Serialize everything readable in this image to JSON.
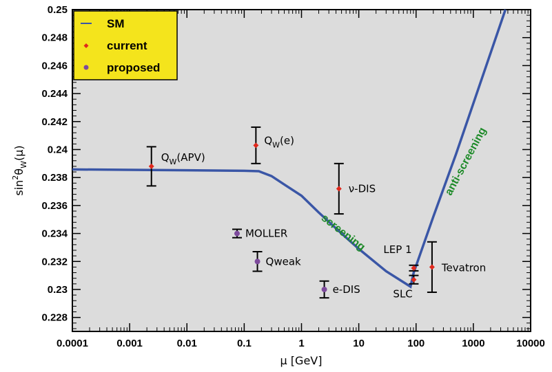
{
  "chart_data": {
    "type": "scatter",
    "xscale": "log",
    "xlim": [
      0.0001,
      10000
    ],
    "ylim": [
      0.227,
      0.25
    ],
    "x_ticks": [
      "0.0001",
      "0.001",
      "0.01",
      "0.1",
      "1",
      "10",
      "100",
      "1000",
      "10000"
    ],
    "y_ticks": [
      "0.228",
      "0.23",
      "0.232",
      "0.234",
      "0.236",
      "0.238",
      "0.24",
      "0.242",
      "0.244",
      "0.246",
      "0.248",
      "0.25"
    ],
    "xlabel": "μ [GeV]",
    "ylabel_base": "sin",
    "ylabel_sup": "2",
    "ylabel_mid": "θ",
    "ylabel_sub": "W",
    "ylabel_tail": "(μ)",
    "grid": false,
    "legend_position": "top-left",
    "colors": {
      "background": "#dcdcdc",
      "sm": "#3a56a6",
      "current": "#e0281c",
      "proposed": "#7d4a9c",
      "legend_bg": "#f4e41c",
      "region_text": "#1d8a28"
    },
    "legend": [
      {
        "label": "SM",
        "kind": "line"
      },
      {
        "label": "current",
        "kind": "diamond"
      },
      {
        "label": "proposed",
        "kind": "circle"
      }
    ],
    "series": [
      {
        "name": "SM",
        "type": "line",
        "points": [
          [
            0.0001,
            0.23858
          ],
          [
            0.001,
            0.23855
          ],
          [
            0.01,
            0.23852
          ],
          [
            0.1,
            0.23848
          ],
          [
            0.18,
            0.23845
          ],
          [
            0.3,
            0.2381
          ],
          [
            0.5,
            0.2375
          ],
          [
            1.0,
            0.2367
          ],
          [
            2.0,
            0.2355
          ],
          [
            5.0,
            0.234
          ],
          [
            10,
            0.2329
          ],
          [
            30,
            0.2313
          ],
          [
            80,
            0.2302
          ],
          [
            91,
            0.2312
          ],
          [
            200,
            0.2352
          ],
          [
            500,
            0.2397
          ],
          [
            1000,
            0.2433
          ],
          [
            2000,
            0.2469
          ],
          [
            4000,
            0.2505
          ]
        ]
      },
      {
        "name": "current",
        "type": "errorbar",
        "points": [
          {
            "label_main": "Q",
            "label_sub": "W",
            "label_tail": "(APV)",
            "x": 0.0024,
            "y": 0.2388,
            "err": 0.0014
          },
          {
            "label_main": "Q",
            "label_sub": "W",
            "label_tail": "(e)",
            "x": 0.16,
            "y": 0.2403,
            "err": 0.0013
          },
          {
            "label_main": "ν-DIS",
            "x": 4.5,
            "y": 0.2372,
            "err": 0.0018
          },
          {
            "label_main": "LEP 1",
            "x": 91.2,
            "y": 0.23153,
            "err": 0.0002
          },
          {
            "label_main": "SLC",
            "x": 91.2,
            "y": 0.2307,
            "err": 0.0003
          },
          {
            "label_main": "Tevatron",
            "x": 190,
            "y": 0.2316,
            "err": 0.0018
          }
        ]
      },
      {
        "name": "proposed",
        "type": "errorbar",
        "points": [
          {
            "label_main": "MOLLER",
            "x": 0.075,
            "y": 0.234,
            "err": 0.0003
          },
          {
            "label_main": "Qweak",
            "x": 0.17,
            "y": 0.232,
            "err": 0.0007
          },
          {
            "label_main": "e-DIS",
            "x": 2.5,
            "y": 0.23,
            "err": 0.0006
          }
        ]
      }
    ],
    "annotations": [
      {
        "text": "screening"
      },
      {
        "text": "anti-screening"
      }
    ]
  }
}
